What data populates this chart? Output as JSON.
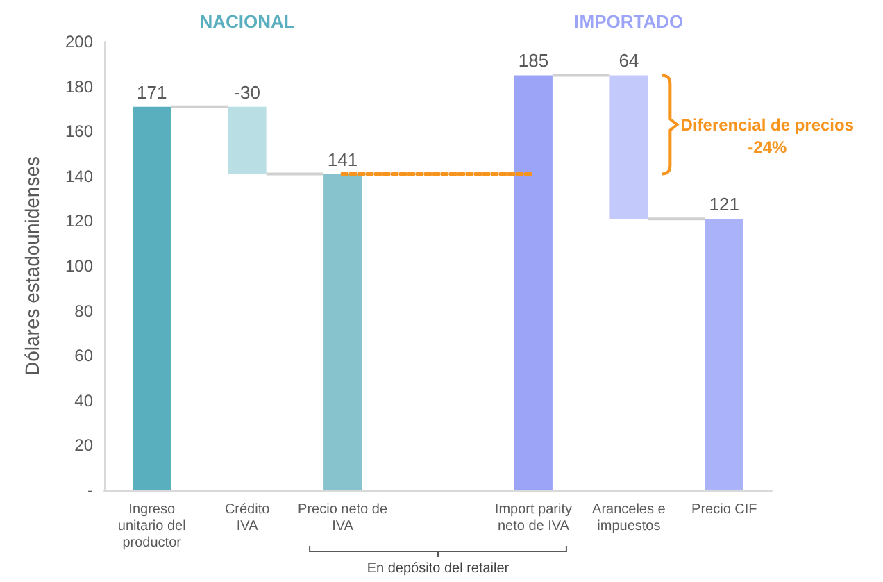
{
  "chart_data": {
    "type": "bar",
    "ylabel": "Dólares estadounidenses",
    "categories": [
      "Ingreso\nunitario del\nproductor",
      "Crédito\nIVA",
      "Precio neto de\nIVA",
      null,
      "Import parity\nneto de IVA",
      "Aranceles e\nimpuestos",
      "Precio CIF"
    ],
    "series": [
      {
        "values": [
          171,
          -30,
          141,
          null,
          185,
          -64,
          121
        ],
        "base": [
          0,
          171,
          0,
          null,
          0,
          185,
          0
        ],
        "colors": [
          "#5aafbf",
          "#b9dfe5",
          "#86c3cd",
          null,
          "#9ba4f7",
          "#c4c9fb",
          "#aab2f9"
        ],
        "value_labels": [
          "171",
          "-30",
          "141",
          null,
          "185",
          "64",
          "121"
        ]
      },
      {
        "type": "line",
        "color": "#f7941d",
        "values": [
          null,
          null,
          141,
          141,
          141,
          null,
          null
        ],
        "line_style": "dotted",
        "marker": "none"
      }
    ],
    "ylim": [
      0,
      200
    ],
    "yticks": [
      {
        "value": 0,
        "label": "-"
      },
      20,
      40,
      60,
      80,
      100,
      120,
      140,
      160,
      180,
      200
    ],
    "annotations": [
      "NACIONAL",
      "IMPORTADO",
      "Diferencial de precios\n-24%",
      "En depósito del retailer"
    ]
  }
}
